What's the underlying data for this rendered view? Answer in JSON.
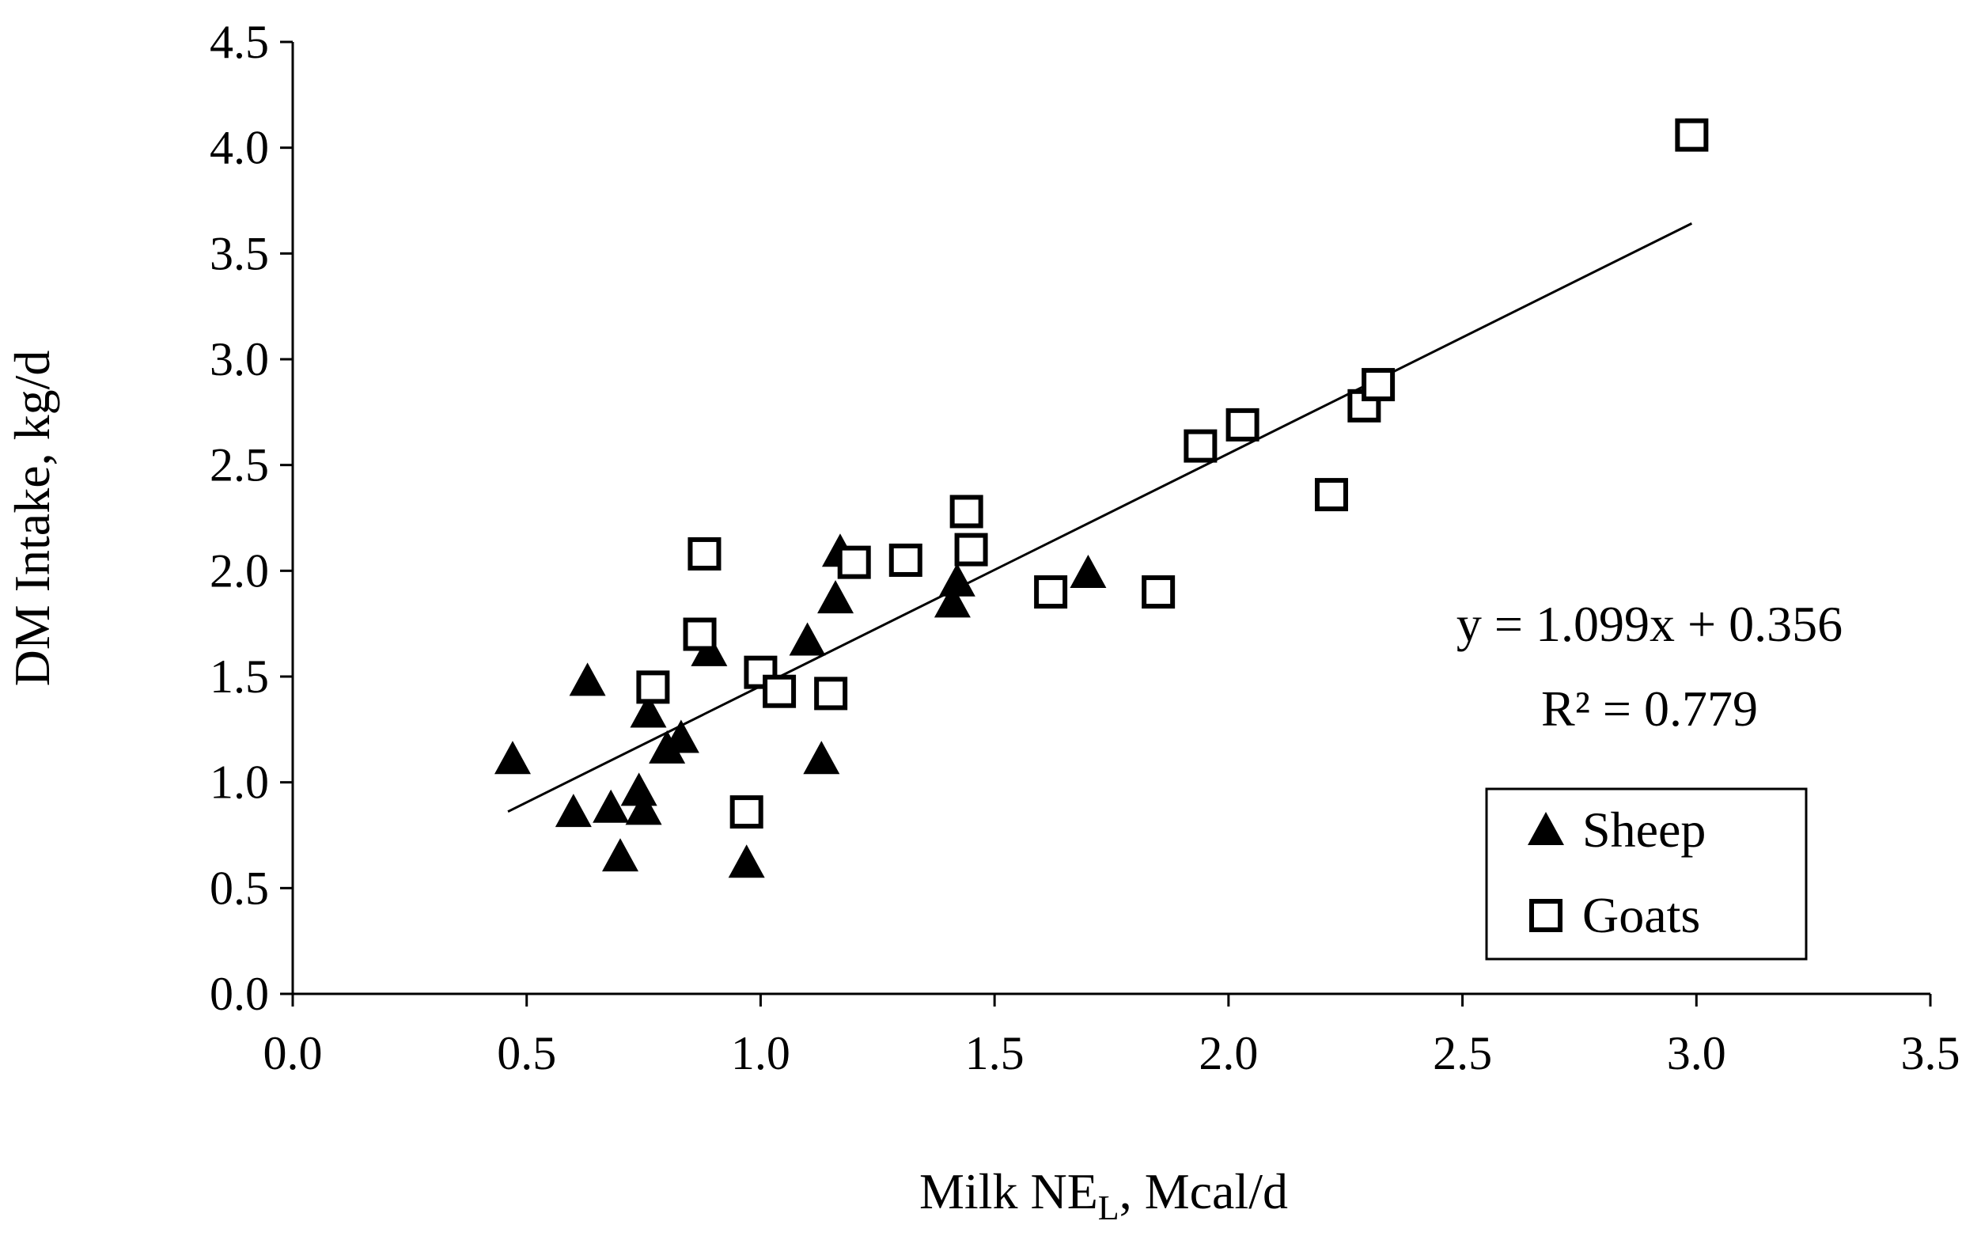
{
  "chart_data": {
    "type": "scatter",
    "title": "",
    "xlabel": "Milk NE",
    "xlabel_subscript": "L",
    "xlabel_suffix": ", Mcal/d",
    "ylabel": "DM Intake, kg/d",
    "xlim": [
      0,
      3.5
    ],
    "ylim": [
      0,
      4.5
    ],
    "x_ticks": [
      "0.0",
      "0.5",
      "1.0",
      "1.5",
      "2.0",
      "2.5",
      "3.0",
      "3.5"
    ],
    "y_ticks": [
      "0.0",
      "0.5",
      "1.0",
      "1.5",
      "2.0",
      "2.5",
      "3.0",
      "3.5",
      "4.0",
      "4.5"
    ],
    "grid": false,
    "legend_position": "bottom-right",
    "series": [
      {
        "name": "Sheep",
        "marker": "triangle",
        "points": [
          [
            0.47,
            1.11
          ],
          [
            0.6,
            0.86
          ],
          [
            0.63,
            1.48
          ],
          [
            0.68,
            0.88
          ],
          [
            0.7,
            0.65
          ],
          [
            0.74,
            0.96
          ],
          [
            0.75,
            0.87
          ],
          [
            0.76,
            1.33
          ],
          [
            0.8,
            1.16
          ],
          [
            0.83,
            1.21
          ],
          [
            0.89,
            1.62
          ],
          [
            0.97,
            0.62
          ],
          [
            1.1,
            1.67
          ],
          [
            1.13,
            1.11
          ],
          [
            1.16,
            1.87
          ],
          [
            1.17,
            2.09
          ],
          [
            1.41,
            1.85
          ],
          [
            1.42,
            1.95
          ],
          [
            1.7,
            1.99
          ]
        ]
      },
      {
        "name": "Goats",
        "marker": "square",
        "points": [
          [
            0.77,
            1.45
          ],
          [
            0.87,
            1.7
          ],
          [
            0.88,
            2.08
          ],
          [
            0.97,
            0.86
          ],
          [
            1.0,
            1.52
          ],
          [
            1.04,
            1.43
          ],
          [
            1.15,
            1.42
          ],
          [
            1.2,
            2.04
          ],
          [
            1.31,
            2.05
          ],
          [
            1.44,
            2.28
          ],
          [
            1.45,
            2.1
          ],
          [
            1.62,
            1.9
          ],
          [
            1.85,
            1.9
          ],
          [
            1.94,
            2.59
          ],
          [
            2.03,
            2.69
          ],
          [
            2.22,
            2.36
          ],
          [
            2.29,
            2.78
          ],
          [
            2.32,
            2.88
          ],
          [
            2.99,
            4.06
          ]
        ]
      }
    ],
    "trendline": {
      "slope": 1.099,
      "intercept": 0.356,
      "x_range": [
        0.46,
        2.99
      ]
    },
    "annotations": {
      "equation": "y = 1.099x + 0.356",
      "r_squared": "R² = 0.779"
    }
  }
}
